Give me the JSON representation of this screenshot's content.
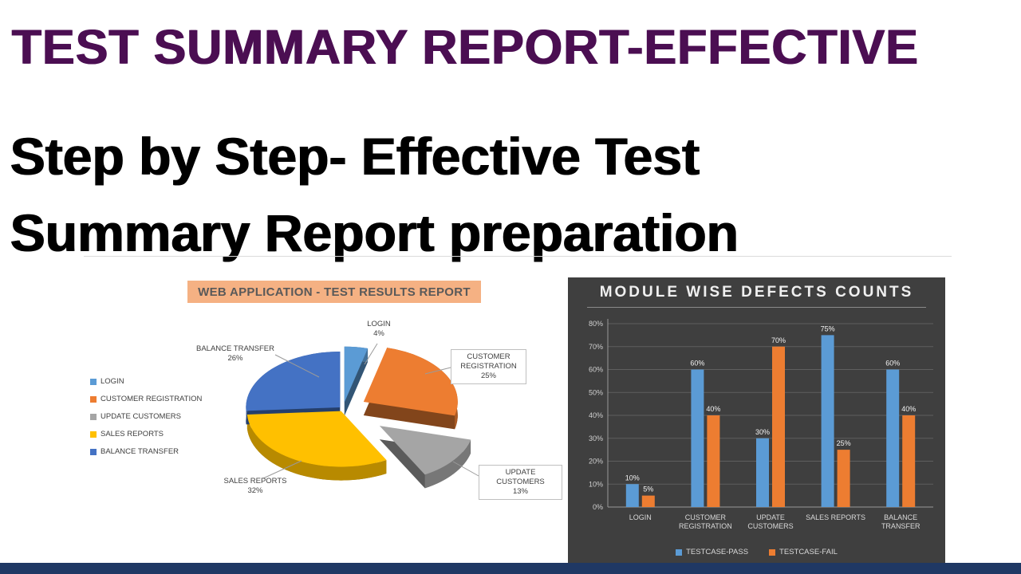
{
  "banner": {
    "title": "TEST SUMMARY REPORT-EFFECTIVE",
    "subtitle_line1": "Step by Step- Effective Test",
    "subtitle_line2": "Summary Report preparation"
  },
  "colors": {
    "title_purple": "#4B0E52",
    "pie_header_bg": "#F5B183",
    "bar_panel_bg": "#3F3F3F",
    "bottom_bar_navy": "#1F3864",
    "pass_blue": "#5B9BD5",
    "fail_orange": "#ED7D31"
  },
  "chart_data": [
    {
      "type": "pie",
      "style": "3d-exploded",
      "title": "WEB APPLICATION - TEST RESULTS REPORT",
      "categories": [
        "LOGIN",
        "CUSTOMER REGISTRATION",
        "UPDATE CUSTOMERS",
        "SALES REPORTS",
        "BALANCE TRANSFER"
      ],
      "values": [
        4,
        25,
        13,
        32,
        26
      ],
      "unit": "%",
      "colors": [
        "#5B9BD5",
        "#ED7D31",
        "#A5A5A5",
        "#FFC000",
        "#4472C4"
      ],
      "legend_position": "left"
    },
    {
      "type": "bar",
      "title": "MODULE WISE DEFECTS COUNTS",
      "categories": [
        "LOGIN",
        "CUSTOMER REGISTRATION",
        "UPDATE CUSTOMERS",
        "SALES REPORTS",
        "BALANCE TRANSFER"
      ],
      "series": [
        {
          "name": "TESTCASE-PASS",
          "color": "#5B9BD5",
          "values": [
            10,
            60,
            30,
            75,
            60
          ]
        },
        {
          "name": "TESTCASE-FAIL",
          "color": "#ED7D31",
          "values": [
            5,
            40,
            70,
            25,
            40
          ]
        }
      ],
      "unit": "%",
      "ylim": [
        0,
        80
      ],
      "ytick_step": 10,
      "grid": true,
      "legend_position": "bottom",
      "background": "#3F3F3F"
    }
  ]
}
